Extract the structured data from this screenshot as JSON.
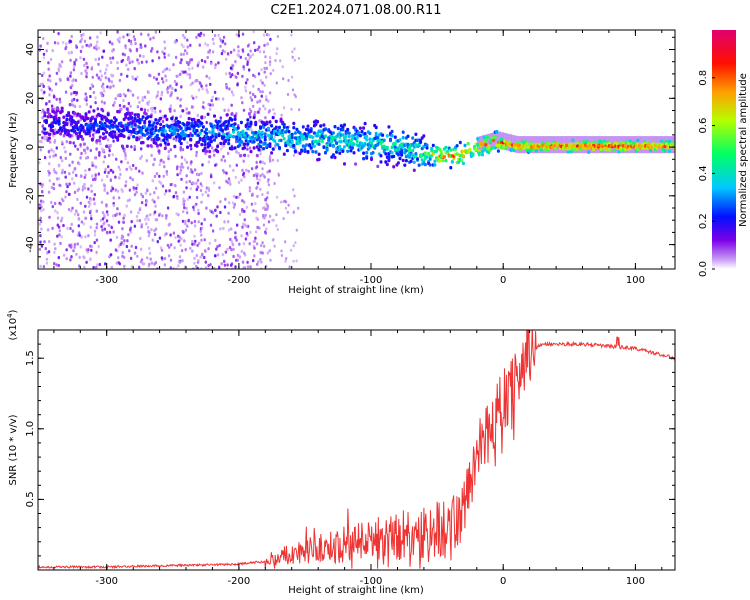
{
  "figure": {
    "title": "C2E1.2024.071.08.00.R11"
  },
  "chart_data": [
    {
      "type": "heatmap",
      "xlabel": "Height of straight line (km)",
      "ylabel": "Frequency (Hz)",
      "xlim": [
        -352,
        130
      ],
      "ylim": [
        -50,
        48
      ],
      "xticks": [
        -300,
        -200,
        -100,
        0,
        100
      ],
      "yticks": [
        -40,
        -20,
        0,
        20,
        40
      ],
      "colorbar": {
        "label": "Normalized spectral amplitude",
        "range": [
          0.0,
          1.0
        ],
        "ticks": [
          0.0,
          0.2,
          0.4,
          0.6,
          0.8
        ],
        "tick_labels": [
          "0.0",
          "0.2",
          "0.4",
          "0.6",
          "0.8"
        ],
        "colormap": [
          "#ffffff",
          "#7b00e8",
          "#0000ff",
          "#00c8ff",
          "#00ff64",
          "#c8ff00",
          "#ffa000",
          "#ff0000",
          "#e0006f"
        ]
      },
      "ridge": [
        {
          "x": -340,
          "f": 10,
          "amp": 0.25
        },
        {
          "x": -300,
          "f": 9,
          "amp": 0.28
        },
        {
          "x": -270,
          "f": 8,
          "amp": 0.35
        },
        {
          "x": -240,
          "f": 7,
          "amp": 0.35
        },
        {
          "x": -200,
          "f": 6,
          "amp": 0.42
        },
        {
          "x": -160,
          "f": 4,
          "amp": 0.45
        },
        {
          "x": -120,
          "f": 3,
          "amp": 0.5
        },
        {
          "x": -80,
          "f": 1,
          "amp": 0.5
        },
        {
          "x": -60,
          "f": -2,
          "amp": 0.55
        },
        {
          "x": -50,
          "f": -3,
          "amp": 0.85
        },
        {
          "x": -35,
          "f": -3,
          "amp": 0.85
        },
        {
          "x": -25,
          "f": 0,
          "amp": 0.85
        },
        {
          "x": -5,
          "f": 3,
          "amp": 0.9
        },
        {
          "x": 10,
          "f": 1,
          "amp": 0.85
        },
        {
          "x": 60,
          "f": 1,
          "amp": 0.95
        },
        {
          "x": 100,
          "f": 1,
          "amp": 0.9
        },
        {
          "x": 130,
          "f": 1,
          "amp": 0.85
        }
      ]
    },
    {
      "type": "line",
      "xlabel": "Height of straight line (km)",
      "ylabel": "SNR (10 * v/v)",
      "y_multiplier": "(x10",
      "y_multiplier_exp": "4",
      "y_multiplier_close": ")",
      "xlim": [
        -352,
        130
      ],
      "ylim": [
        0,
        1.7
      ],
      "xticks": [
        -300,
        -200,
        -100,
        0,
        100
      ],
      "yticks": [
        0.5,
        1.0,
        1.5
      ],
      "ytick_labels": [
        "0.5",
        "1.0",
        "1.5"
      ],
      "color": "#ee3333",
      "series": [
        {
          "x": [
            -352,
            -300,
            -250,
            -200,
            -180,
            -160,
            -140,
            -120,
            -100,
            -80,
            -60,
            -40,
            -30,
            -20,
            -10,
            0,
            10,
            20,
            30,
            60,
            100,
            130
          ],
          "y": [
            0.02,
            0.02,
            0.03,
            0.04,
            0.06,
            0.12,
            0.15,
            0.18,
            0.22,
            0.24,
            0.26,
            0.3,
            0.4,
            0.85,
            1.0,
            1.2,
            1.35,
            1.55,
            1.6,
            1.6,
            1.57,
            1.5
          ]
        }
      ]
    }
  ]
}
